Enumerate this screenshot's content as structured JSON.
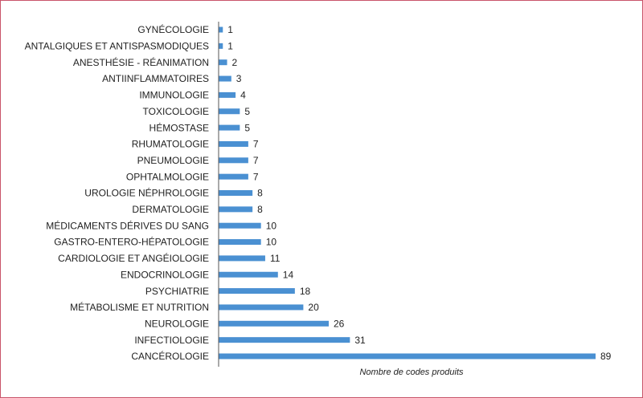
{
  "chart_data": {
    "type": "bar",
    "orientation": "horizontal",
    "categories": [
      "GYNÉCOLOGIE",
      "ANTALGIQUES ET ANTISPASMODIQUES",
      "ANESTHÉSIE - RÉANIMATION",
      "ANTIINFLAMMATOIRES",
      "IMMUNOLOGIE",
      "TOXICOLOGIE",
      "HÉMOSTASE",
      "RHUMATOLOGIE",
      "PNEUMOLOGIE",
      "OPHTALMOLOGIE",
      "UROLOGIE NÉPHROLOGIE",
      "DERMATOLOGIE",
      "MÉDICAMENTS DÉRIVES DU SANG",
      "GASTRO-ENTERO-HÉPATOLOGIE",
      "CARDIOLOGIE ET ANGÉIOLOGIE",
      "ENDOCRINOLOGIE",
      "PSYCHIATRIE",
      "MÉTABOLISME ET NUTRITION",
      "NEUROLOGIE",
      "INFECTIOLOGIE",
      "CANCÉROLOGIE"
    ],
    "values": [
      1,
      1,
      2,
      3,
      4,
      5,
      5,
      7,
      7,
      7,
      8,
      8,
      10,
      10,
      11,
      14,
      18,
      20,
      26,
      31,
      89
    ],
    "title": "",
    "xlabel": "Nombre de codes produits",
    "ylabel": "",
    "xlim": [
      0,
      89
    ],
    "grid": false,
    "data_labels": true,
    "bar_color": "#4a90d2",
    "frame_color": "#c9546a"
  }
}
